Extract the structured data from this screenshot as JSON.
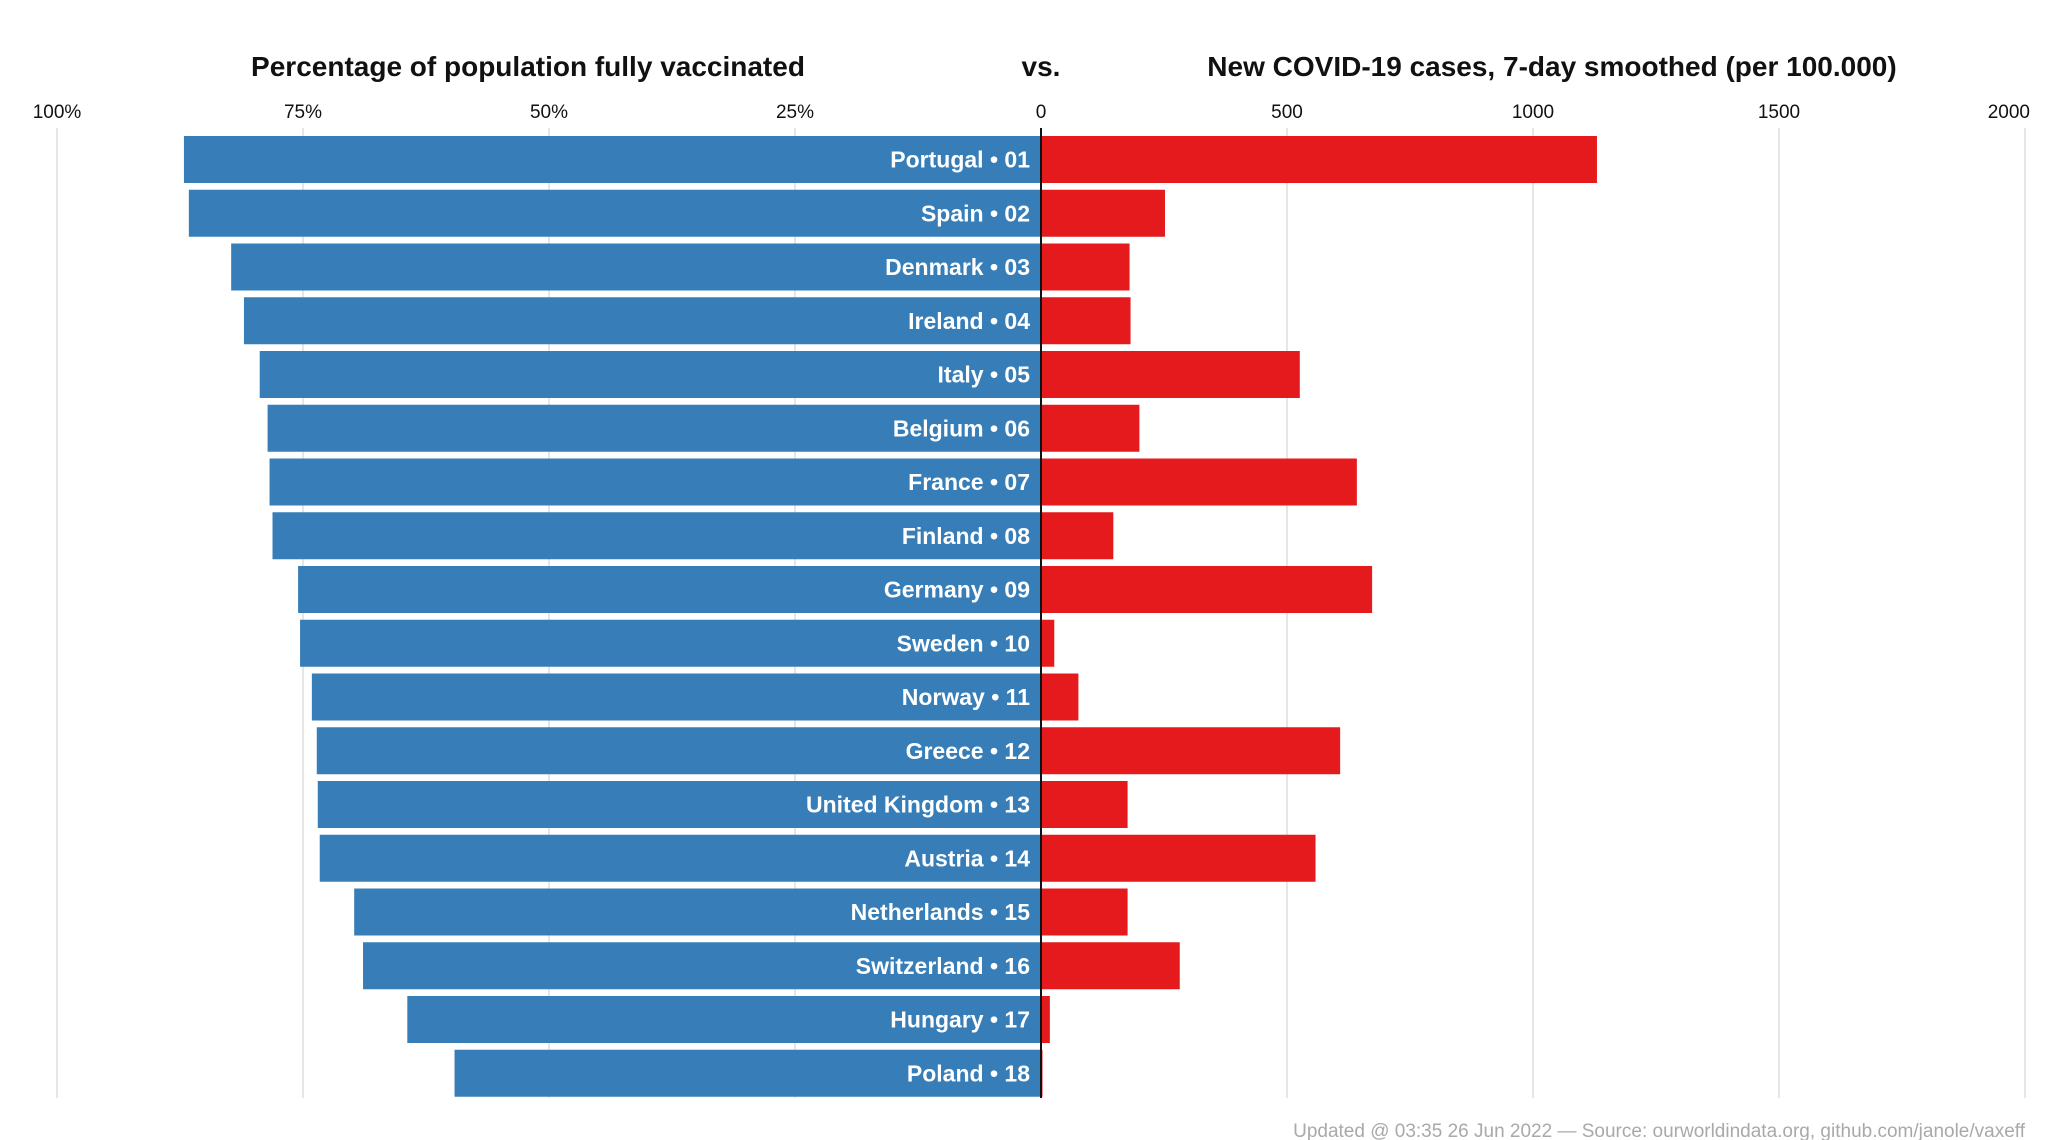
{
  "chart_data": {
    "type": "bar",
    "title_left": "Percentage of population fully vaccinated",
    "title_mid": "vs.",
    "title_right": "New COVID-19 cases, 7-day smoothed (per 100.000)",
    "left_axis": {
      "ticks": [
        100,
        75,
        50,
        25,
        0
      ],
      "tick_labels": [
        "100%",
        "75%",
        "50%",
        "25%",
        "0"
      ],
      "range": [
        0,
        100
      ]
    },
    "right_axis": {
      "ticks": [
        500,
        1000,
        1500,
        2000
      ],
      "tick_labels": [
        "500",
        "1000",
        "1500",
        "2000"
      ],
      "range": [
        0,
        2000
      ]
    },
    "categories": [
      "Portugal • 01",
      "Spain • 02",
      "Denmark • 03",
      "Ireland • 04",
      "Italy • 05",
      "Belgium • 06",
      "France • 07",
      "Finland • 08",
      "Germany • 09",
      "Sweden • 10",
      "Norway • 11",
      "Greece • 12",
      "United Kingdom • 13",
      "Austria • 14",
      "Netherlands • 15",
      "Switzerland • 16",
      "Hungary • 17",
      "Poland • 18"
    ],
    "series": [
      {
        "name": "Percentage of population fully vaccinated",
        "color": "#377eb8",
        "values": [
          87.1,
          86.6,
          82.3,
          81.0,
          79.4,
          78.6,
          78.4,
          78.1,
          75.5,
          75.3,
          74.1,
          73.6,
          73.5,
          73.3,
          69.8,
          68.9,
          64.4,
          59.6
        ]
      },
      {
        "name": "New COVID-19 cases, 7-day smoothed (per 100.000)",
        "color": "#e41a1c",
        "values": [
          1130,
          252,
          180,
          182,
          526,
          200,
          642,
          147,
          673,
          27,
          76,
          608,
          176,
          558,
          176,
          282,
          18,
          3
        ]
      }
    ],
    "grid": true,
    "footer": "Updated @ 03:35 26 Jun 2022 — Source: ourworldindata.org, github.com/janole/vaxeff"
  }
}
